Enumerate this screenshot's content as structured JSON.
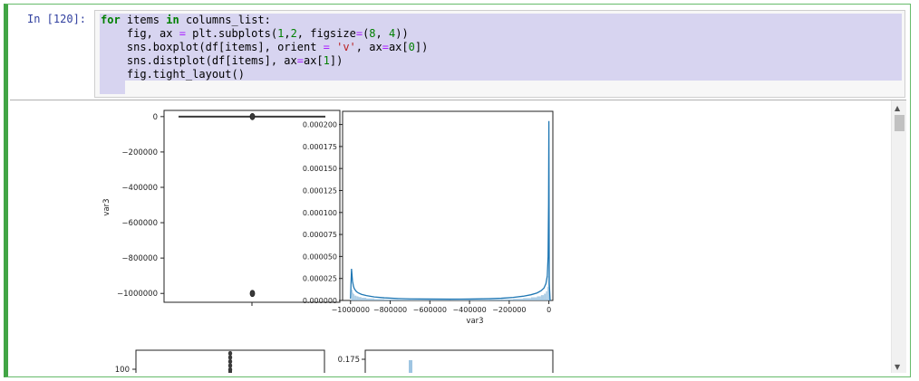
{
  "cell": {
    "prompt": "In [120]:",
    "code_lines": [
      [
        {
          "t": "for",
          "c": "kw"
        },
        {
          "t": " items "
        },
        {
          "t": "in",
          "c": "kw"
        },
        {
          "t": " columns_list:"
        }
      ],
      [
        {
          "t": "    fig, ax "
        },
        {
          "t": "=",
          "c": "op"
        },
        {
          "t": " plt.subplots("
        },
        {
          "t": "1",
          "c": "num"
        },
        {
          "t": ","
        },
        {
          "t": "2",
          "c": "num"
        },
        {
          "t": ", figsize"
        },
        {
          "t": "=",
          "c": "op"
        },
        {
          "t": "("
        },
        {
          "t": "8",
          "c": "num"
        },
        {
          "t": ", "
        },
        {
          "t": "4",
          "c": "num"
        },
        {
          "t": "))"
        }
      ],
      [
        {
          "t": "    sns.boxplot(df[items], orient "
        },
        {
          "t": "=",
          "c": "op"
        },
        {
          "t": " "
        },
        {
          "t": "'v'",
          "c": "str"
        },
        {
          "t": ", ax"
        },
        {
          "t": "=",
          "c": "op"
        },
        {
          "t": "ax["
        },
        {
          "t": "0",
          "c": "num"
        },
        {
          "t": "])"
        }
      ],
      [
        {
          "t": "    sns.distplot(df[items], ax"
        },
        {
          "t": "=",
          "c": "op"
        },
        {
          "t": "ax["
        },
        {
          "t": "1",
          "c": "num"
        },
        {
          "t": "])"
        }
      ],
      [
        {
          "t": "    fig.tight_layout()"
        }
      ]
    ]
  },
  "chart_data": [
    {
      "type": "box",
      "ylabel": "var3",
      "xlabel": "",
      "ylim": [
        -1050000,
        35000
      ],
      "yticks": [
        0,
        -200000,
        -400000,
        -600000,
        -800000,
        -1000000
      ],
      "ytick_labels": [
        "0",
        "−200000",
        "−400000",
        "−600000",
        "−800000",
        "−1000000"
      ],
      "box": {
        "median": 0,
        "q1": 0,
        "q3": 0,
        "whisker_low": 0,
        "whisker_high": 0
      },
      "outliers": [
        -1000000,
        0
      ],
      "color": "#3a3a3a"
    },
    {
      "type": "area",
      "xlabel": "var3",
      "ylabel": "",
      "xlim": [
        -1040000,
        20000
      ],
      "ylim": [
        0,
        0.000215
      ],
      "yticks": [
        0,
        2.5e-05,
        5e-05,
        7.5e-05,
        0.0001,
        0.000125,
        0.00015,
        0.000175,
        0.0002
      ],
      "ytick_labels": [
        "0.000000",
        "0.000025",
        "0.000050",
        "0.000075",
        "0.000100",
        "0.000125",
        "0.000150",
        "0.000175",
        "0.000200"
      ],
      "xticks": [
        -1000000,
        -800000,
        -600000,
        -400000,
        -200000,
        0
      ],
      "xtick_labels": [
        "−1000000",
        "−800000",
        "−600000",
        "−400000",
        "−200000",
        "0"
      ],
      "kde": {
        "x": [
          -1000000,
          -995000,
          -990000,
          -985000,
          -980000,
          -970000,
          -960000,
          -945000,
          -920000,
          -880000,
          -830000,
          -760000,
          -700000,
          -600000,
          -500000,
          -400000,
          -300000,
          -240000,
          -180000,
          -130000,
          -90000,
          -60000,
          -40000,
          -25000,
          -15000,
          -8000,
          -4000,
          -1500,
          0,
          2000,
          6000
        ],
        "y": [
          2e-06,
          3.6e-05,
          2.2e-05,
          1.6e-05,
          1.3e-05,
          1e-05,
          8.5e-06,
          7e-06,
          5.5e-06,
          4e-06,
          3e-06,
          2.2e-06,
          1.8e-06,
          1.6e-06,
          1.5e-06,
          1.6e-06,
          2e-06,
          2.5e-06,
          3.5e-06,
          4.8e-06,
          6.5e-06,
          8.5e-06,
          1.1e-05,
          1.4e-05,
          1.9e-05,
          2.8e-05,
          5e-05,
          0.00011,
          0.000204,
          2e-05,
          0.0
        ]
      },
      "color": "#1f77b4",
      "fill": "#9fc5e2"
    },
    {
      "type": "box",
      "ylabel": "",
      "ylim_partial": true,
      "yticks": [
        100
      ],
      "ytick_labels": [
        "100"
      ],
      "outliers": [
        100,
        105,
        110,
        115,
        120
      ],
      "color": "#3a3a3a"
    },
    {
      "type": "bar",
      "ylabel": "",
      "yticks": [
        0.175
      ],
      "ytick_labels": [
        "0.175"
      ],
      "values": [
        0.17
      ],
      "color": "#9fc5e2"
    }
  ]
}
